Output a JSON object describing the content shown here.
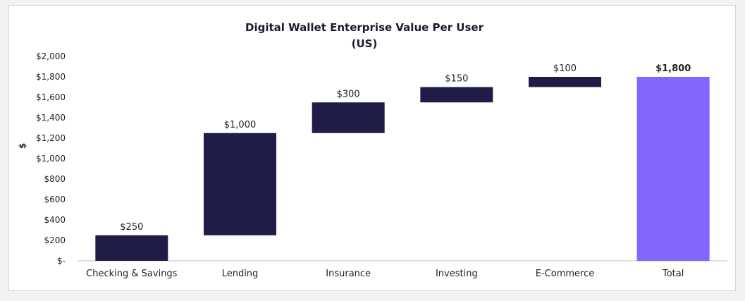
{
  "chart_data": {
    "type": "bar",
    "subtype": "waterfall",
    "title_line1": "Digital Wallet Enterprise Value Per User",
    "title_line2": "(US)",
    "ylabel": "$",
    "ylim": [
      0,
      2000
    ],
    "ytick_step": 200,
    "ytick_labels": [
      "$-",
      "$200",
      "$400",
      "$600",
      "$800",
      "$1,000",
      "$1,200",
      "$1,400",
      "$1,600",
      "$1,800",
      "$2,000"
    ],
    "categories": [
      "Checking & Savings",
      "Lending",
      "Insurance",
      "Investing",
      "E-Commerce",
      "Total"
    ],
    "values": [
      250,
      1000,
      300,
      150,
      100,
      1800
    ],
    "data_labels": [
      "$250",
      "$1,000",
      "$300",
      "$150",
      "$100",
      "$1,800"
    ],
    "is_total": [
      false,
      false,
      false,
      false,
      false,
      true
    ],
    "colors": {
      "increment": "#1f1d47",
      "total": "#8466ff",
      "axis": "#bfbfbf"
    },
    "grid": false,
    "legend": "none"
  }
}
